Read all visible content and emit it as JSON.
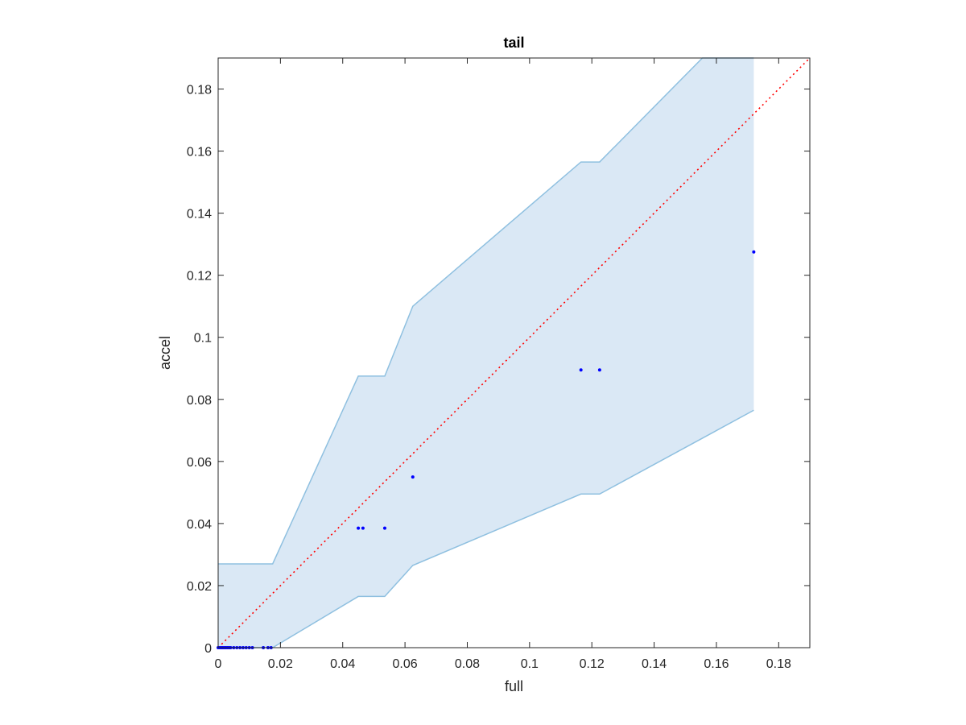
{
  "chart_data": {
    "type": "scatter",
    "title": "tail",
    "xlabel": "full",
    "ylabel": "accel",
    "xlim": [
      0,
      0.19
    ],
    "ylim": [
      0,
      0.19
    ],
    "x_ticks": [
      0,
      0.02,
      0.04,
      0.06,
      0.08,
      0.1,
      0.12,
      0.14,
      0.16,
      0.18
    ],
    "y_ticks": [
      0,
      0.02,
      0.04,
      0.06,
      0.08,
      0.1,
      0.12,
      0.14,
      0.16,
      0.18
    ],
    "x_tick_labels": [
      "0",
      "0.02",
      "0.04",
      "0.06",
      "0.08",
      "0.1",
      "0.12",
      "0.14",
      "0.16",
      "0.18"
    ],
    "y_tick_labels": [
      "0",
      "0.02",
      "0.04",
      "0.06",
      "0.08",
      "0.1",
      "0.12",
      "0.14",
      "0.16",
      "0.18"
    ],
    "grid": false,
    "points": {
      "x": [
        0,
        0.0005,
        0.001,
        0.0015,
        0.002,
        0.0025,
        0.003,
        0.0035,
        0.004,
        0.005,
        0.006,
        0.007,
        0.008,
        0.009,
        0.01,
        0.011,
        0.0145,
        0.016,
        0.017,
        0.045,
        0.0465,
        0.0535,
        0.0625,
        0.1165,
        0.1225,
        0.172
      ],
      "y": [
        0,
        0,
        0,
        0,
        0,
        0,
        0,
        0,
        0,
        0,
        0,
        0,
        0,
        0,
        0,
        0,
        0,
        0,
        0,
        0.0385,
        0.0385,
        0.0385,
        0.055,
        0.0895,
        0.0895,
        0.1275
      ],
      "color": "#0000ff"
    },
    "band": {
      "upper": [
        [
          0,
          0.027
        ],
        [
          0.0175,
          0.027
        ],
        [
          0.045,
          0.0875
        ],
        [
          0.0535,
          0.0875
        ],
        [
          0.0625,
          0.11
        ],
        [
          0.1165,
          0.1565
        ],
        [
          0.1225,
          0.1565
        ],
        [
          0.1555,
          0.19
        ],
        [
          0.172,
          0.19
        ]
      ],
      "lower": [
        [
          0,
          0
        ],
        [
          0.0175,
          0
        ],
        [
          0.045,
          0.0165
        ],
        [
          0.0535,
          0.0165
        ],
        [
          0.0625,
          0.0265
        ],
        [
          0.1165,
          0.0495
        ],
        [
          0.1225,
          0.0495
        ],
        [
          0.172,
          0.0765
        ]
      ],
      "fill_color": "#dae8f5",
      "line_color": "#8fc0e0"
    },
    "reference_line": {
      "x": [
        0,
        0.19
      ],
      "y": [
        0,
        0.19
      ],
      "style": "dotted",
      "color": "#ff0000"
    }
  }
}
